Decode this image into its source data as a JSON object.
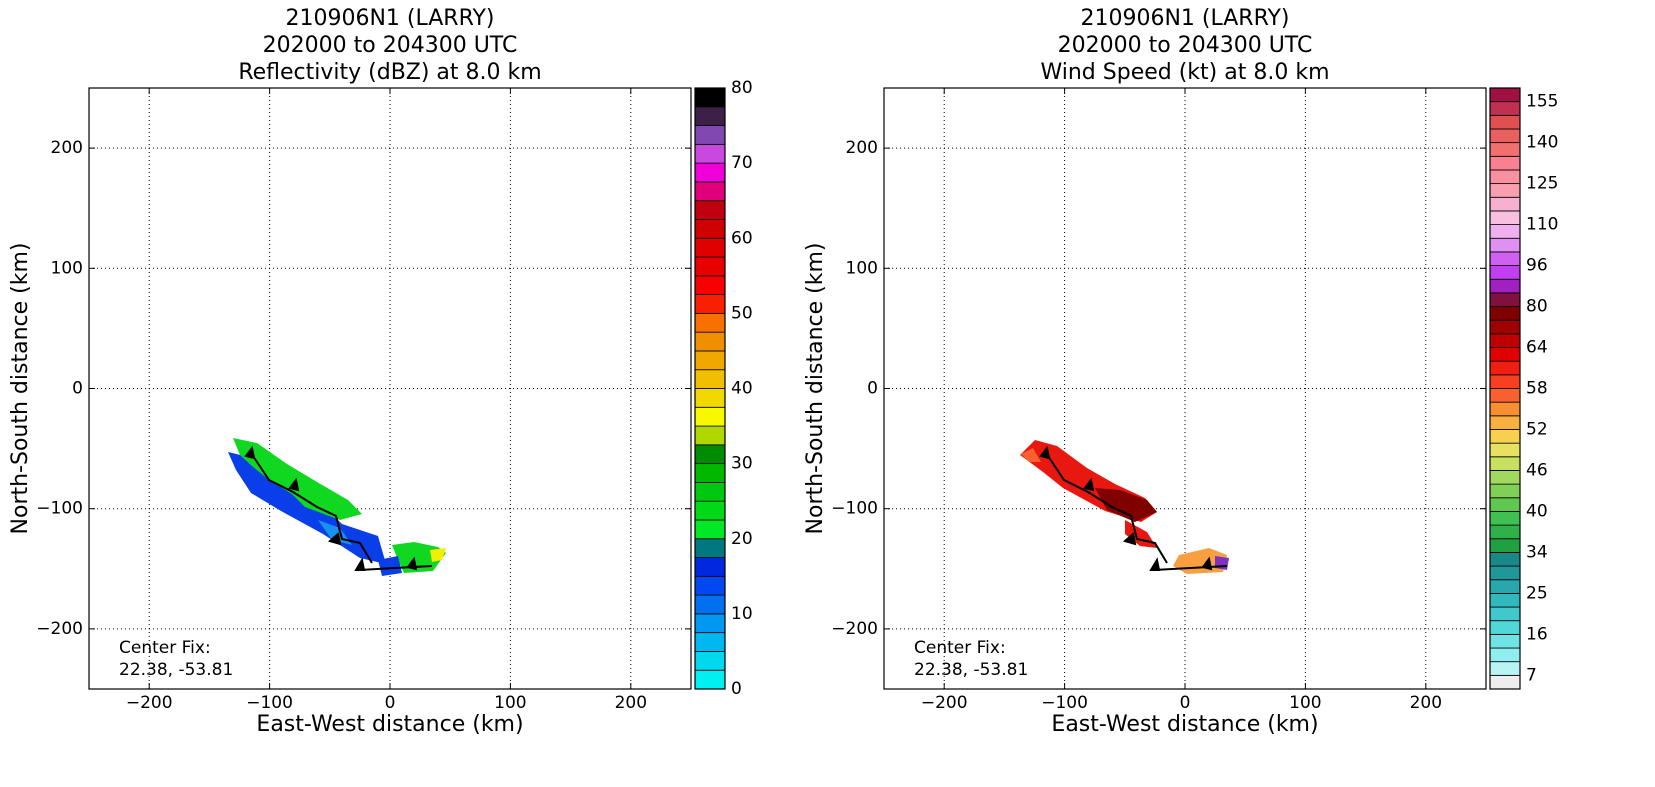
{
  "chart_data": [
    {
      "type": "heatmap",
      "title": [
        "210906N1 (LARRY)",
        "202000 to 204300 UTC",
        "Reflectivity (dBZ) at 8.0 km"
      ],
      "x_label": "East-West distance (km)",
      "y_label": "North-South distance (km)",
      "xlim": [
        -250,
        250
      ],
      "ylim": [
        -250,
        250
      ],
      "xticks": [
        {
          "value": -200,
          "label": "−200"
        },
        {
          "value": -100,
          "label": "−100"
        },
        0,
        100,
        200
      ],
      "yticks": [
        {
          "value": -200,
          "label": "−200"
        },
        {
          "value": -100,
          "label": "−100"
        },
        0,
        100,
        200
      ],
      "grid": true,
      "annotations": [
        "Center Fix:",
        "22.38, -53.81"
      ],
      "colorbar": {
        "levels": [
          0,
          2.5,
          5,
          7.5,
          10,
          12.5,
          15,
          17.5,
          20,
          22.5,
          25,
          27.5,
          30,
          32.5,
          35,
          37.5,
          40,
          42.5,
          45,
          47.5,
          50,
          52.5,
          55,
          57.5,
          60,
          62.5,
          65,
          67.5,
          70,
          72.5,
          75,
          77.5,
          80
        ],
        "colors": [
          "#00f0f0",
          "#00d8f0",
          "#00b8f0",
          "#0098f0",
          "#0070f0",
          "#0048f0",
          "#0028e0",
          "#007880",
          "#00e828",
          "#00d818",
          "#00c810",
          "#00b800",
          "#008c00",
          "#b0d800",
          "#f8f800",
          "#f0d800",
          "#f0c000",
          "#f0a800",
          "#f09000",
          "#f87000",
          "#f82000",
          "#f80000",
          "#e80000",
          "#e00000",
          "#d00000",
          "#c00010",
          "#e0007c",
          "#f000d8",
          "#c848e0",
          "#8048b0",
          "#3c2048",
          "#000000"
        ],
        "ticks": [
          0,
          10,
          20,
          30,
          40,
          50,
          60,
          70,
          80
        ]
      }
    },
    {
      "type": "heatmap",
      "title": [
        "210906N1 (LARRY)",
        "202000 to 204300 UTC",
        "Wind Speed (kt) at 8.0 km"
      ],
      "x_label": "East-West distance (km)",
      "y_label": "North-South distance (km)",
      "xlim": [
        -250,
        250
      ],
      "ylim": [
        -250,
        250
      ],
      "xticks": [
        {
          "value": -200,
          "label": "−200"
        },
        {
          "value": -100,
          "label": "−100"
        },
        0,
        100,
        200
      ],
      "yticks": [
        {
          "value": -200,
          "label": "−200"
        },
        {
          "value": -100,
          "label": "−100"
        },
        0,
        100,
        200
      ],
      "grid": true,
      "annotations": [
        "Center Fix:",
        "22.38, -53.81"
      ],
      "colorbar": {
        "levels": [
          4,
          7,
          10,
          13,
          16,
          19,
          22,
          25,
          28,
          31,
          34,
          36,
          38,
          40,
          42,
          44,
          46,
          48,
          50,
          52,
          54,
          56,
          58,
          60,
          62,
          64,
          69,
          75,
          80,
          85,
          91,
          96,
          101,
          105,
          110,
          115,
          120,
          125,
          130,
          135,
          140,
          145,
          150,
          155,
          160
        ],
        "colors": [
          "#eeeeee",
          "#b8f4f4",
          "#90eeee",
          "#70e4e4",
          "#50d8d8",
          "#40c8cc",
          "#30b8bc",
          "#28a8ac",
          "#209898",
          "#188888",
          "#20a040",
          "#30b048",
          "#40c050",
          "#60c850",
          "#80d058",
          "#a0d860",
          "#c8e060",
          "#e8e060",
          "#f8d050",
          "#f8b040",
          "#f89030",
          "#f86030",
          "#f84020",
          "#f02010",
          "#e00000",
          "#c00000",
          "#a00000",
          "#800000",
          "#801040",
          "#a020c0",
          "#c040f0",
          "#d060f0",
          "#e090f0",
          "#f0b0f0",
          "#f8c0e0",
          "#f8b0d0",
          "#f8a0b0",
          "#f890a0",
          "#f88090",
          "#f07070",
          "#e86060",
          "#e05050",
          "#c03050",
          "#a01040"
        ],
        "ticks": [
          7,
          16,
          25,
          34,
          40,
          46,
          52,
          58,
          64,
          80,
          96,
          110,
          125,
          140,
          155
        ]
      }
    }
  ]
}
